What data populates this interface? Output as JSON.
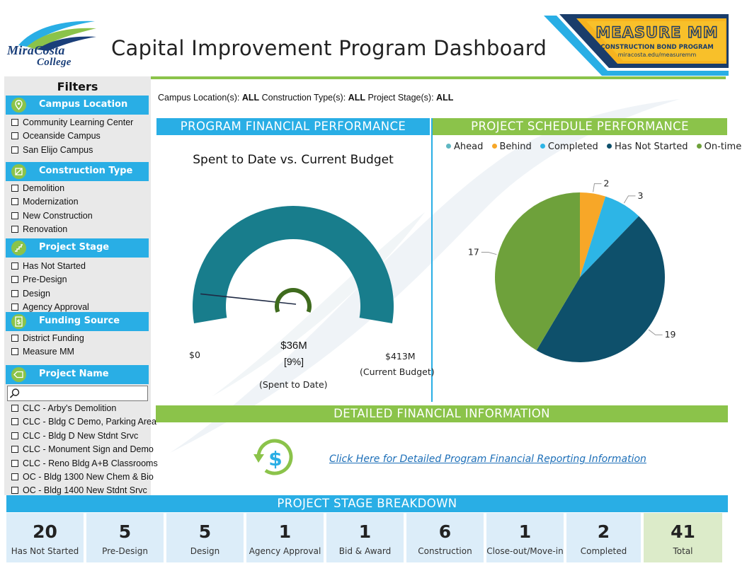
{
  "header": {
    "logo_line1": "MiraCosta",
    "logo_line2": "College",
    "title": "Capital Improvement Program Dashboard",
    "badge_title": "MEASURE MM",
    "badge_subtitle": "CONSTRUCTION BOND PROGRAM",
    "badge_url": "miracosta.edu/measuremm"
  },
  "sidebar": {
    "title": "Filters",
    "sections": [
      {
        "label": "Campus Location",
        "icon": "map-pin-icon",
        "items": [
          "Community Learning Center",
          "Oceanside Campus",
          "San Elijo Campus"
        ]
      },
      {
        "label": "Construction Type",
        "icon": "construction-icon",
        "items": [
          "Demolition",
          "Modernization",
          "New Construction",
          "Renovation"
        ]
      },
      {
        "label": "Project Stage",
        "icon": "stairs-icon",
        "items": [
          "Has Not Started",
          "Pre-Design",
          "Design",
          "Agency Approval"
        ]
      },
      {
        "label": "Funding Source",
        "icon": "dollar-doc-icon",
        "items": [
          "District Funding",
          "Measure MM"
        ]
      },
      {
        "label": "Project Name",
        "icon": "tag-icon",
        "items": [
          "CLC - Arby's Demolition",
          "CLC - Bldg C Demo, Parking Area",
          "CLC - Bldg D New Stdnt Srvc",
          "CLC - Monument Sign and Demo",
          "CLC - Reno Bldg A+B Classrooms",
          "OC - Bldg 1300 New Chem & Bio",
          "OC - Bldg 1400 New Stdnt Srvc"
        ]
      }
    ],
    "search_placeholder": ""
  },
  "criteria": {
    "campus_label": "Campus Location(s):",
    "campus_value": "ALL",
    "type_label": "Construction Type(s):",
    "type_value": "ALL",
    "stage_label": "Project Stage(s):",
    "stage_value": "ALL"
  },
  "financial": {
    "header": "PROGRAM FINANCIAL PERFORMANCE",
    "gauge_title": "Spent to Date vs. Current Budget",
    "min_label": "$0",
    "max_label": "$413M",
    "max_caption": "(Current Budget)",
    "value_label": "$36M",
    "percent_label": "[9%]",
    "value_caption": "(Spent to Date)",
    "spent": 36,
    "budget": 413,
    "colors": {
      "arc": "#187d8c",
      "needle": "#3f6b1e"
    }
  },
  "schedule": {
    "header": "PROJECT SCHEDULE PERFORMANCE",
    "legend": [
      {
        "label": "Ahead",
        "color": "#5fb7c2"
      },
      {
        "label": "Behind",
        "color": "#f7a728"
      },
      {
        "label": "Completed",
        "color": "#2db5e6"
      },
      {
        "label": "Has Not Started",
        "color": "#0e506b"
      },
      {
        "label": "On-time",
        "color": "#6ea13b"
      }
    ]
  },
  "chart_data": {
    "type": "pie",
    "title": "Project Schedule Performance",
    "categories": [
      "Ahead",
      "Behind",
      "Completed",
      "Has Not Started",
      "On-time"
    ],
    "values": [
      0,
      2,
      3,
      19,
      17
    ],
    "value_labels": [
      "",
      "2",
      "3",
      "19",
      "17"
    ],
    "legend_position": "top"
  },
  "details": {
    "header": "DETAILED FINANCIAL INFORMATION",
    "link_text": "Click Here for Detailed Program Financial Reporting Information"
  },
  "stages": {
    "header": "PROJECT STAGE BREAKDOWN",
    "cards": [
      {
        "value": "20",
        "label": "Has Not Started"
      },
      {
        "value": "5",
        "label": "Pre-Design"
      },
      {
        "value": "5",
        "label": "Design"
      },
      {
        "value": "1",
        "label": "Agency Approval"
      },
      {
        "value": "1",
        "label": "Bid & Award"
      },
      {
        "value": "6",
        "label": "Construction"
      },
      {
        "value": "1",
        "label": "Close-out/Move-in"
      },
      {
        "value": "2",
        "label": "Completed"
      },
      {
        "value": "41",
        "label": "Total"
      }
    ]
  }
}
